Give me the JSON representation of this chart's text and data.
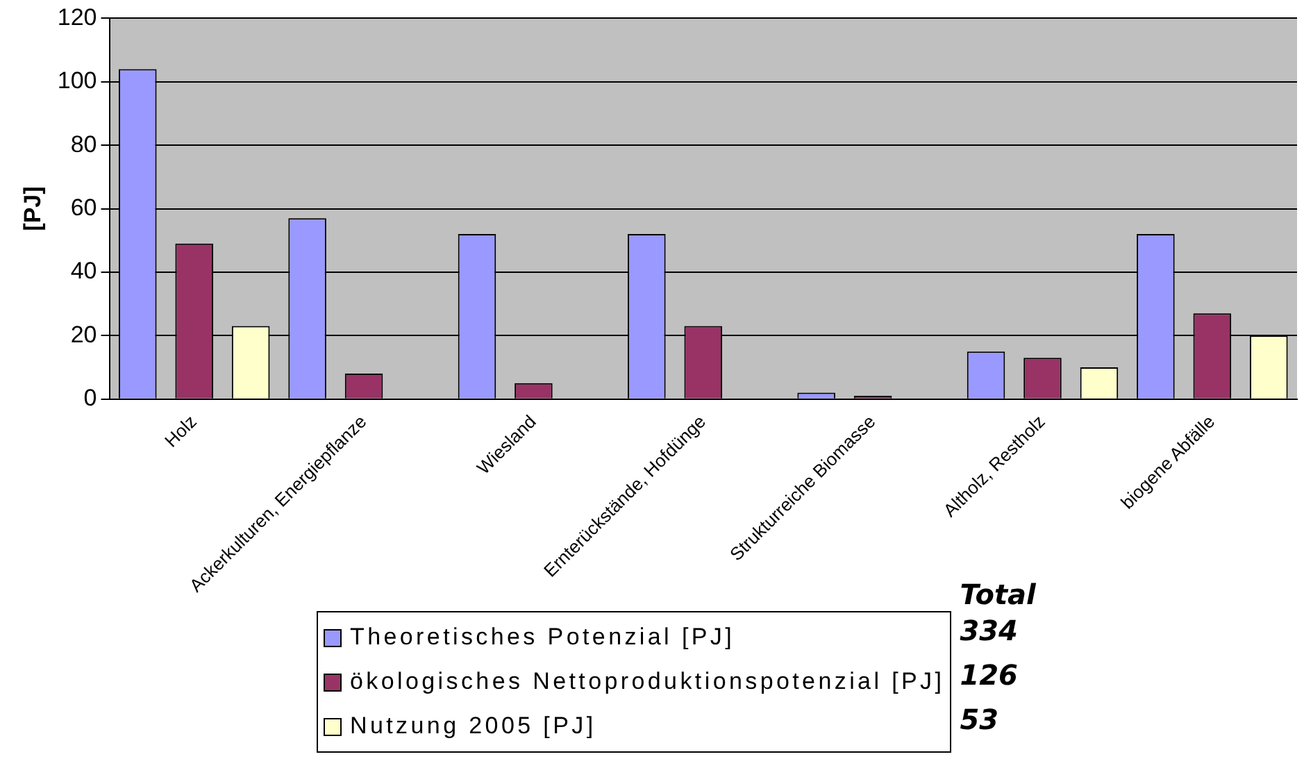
{
  "chart_data": {
    "type": "bar",
    "ylabel": "[PJ]",
    "categories": [
      "Holz",
      "Ackerkulturen, Energiepflanze",
      "Wiesland",
      "Ernterückstände, Hofdünge",
      "Strukturreiche Biomasse",
      "Altholz, Restholz",
      "biogene Abfälle"
    ],
    "series": [
      {
        "name": "Theoretisches Potenzial [PJ]",
        "color": "#9999ff",
        "values": [
          104,
          57,
          52,
          52,
          2,
          15,
          52
        ]
      },
      {
        "name": "ökologisches Nettoproduktionspotenzial [PJ]",
        "color": "#993366",
        "values": [
          49,
          8,
          5,
          23,
          1,
          13,
          27
        ]
      },
      {
        "name": "Nutzung 2005 [PJ]",
        "color": "#ffffcc",
        "values": [
          23,
          0,
          0,
          0,
          0,
          10,
          20
        ]
      }
    ],
    "ylim": [
      0,
      120
    ],
    "yticks": [
      0,
      20,
      40,
      60,
      80,
      100,
      120
    ],
    "grid": "y",
    "legend": "bottom",
    "annotations": [
      "Total",
      "334",
      "126",
      "53"
    ]
  }
}
